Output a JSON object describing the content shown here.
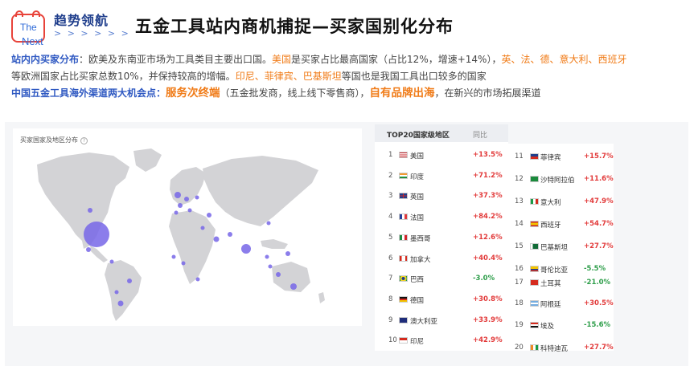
{
  "header": {
    "logo_the": "The",
    "logo_next": "Next",
    "brand_name": "趋势领航",
    "brand_chevrons": "> > > > > >",
    "title": "五金工具站内商机捕捉—买家国别化分布"
  },
  "line1": {
    "label": "站内内买家分布",
    "p1": "：欧美及东南亚市场为工具类目主要出口国。",
    "hl1": "美国",
    "p2": "是买家占比最高国家（占比12%，增速+14%），",
    "hl2": "英、法、德、意大利、西班牙"
  },
  "line2": {
    "p1": "等欧洲国家占比买家总数10%，并保持较高的增幅。",
    "hl1": "印尼、菲律宾、巴基斯坦",
    "p2": "等国也是我国工具出口较多的国家"
  },
  "line3": {
    "label": "中国五金工具海外渠道两大机会点：",
    "hl1": "服务次终端",
    "p1": "（五金批发商，线上线下零售商），",
    "hl2": "自有品牌出海",
    "p2": "，在新兴的市场拓展渠道"
  },
  "map": {
    "title": "买家国家及地区分布",
    "help_icon_text": "?",
    "colors": {
      "land": "#d3d3d6",
      "bubble": "#7766e8"
    }
  },
  "table": {
    "col_country": "TOP20国家级地区",
    "col_change": "同比",
    "colors": {
      "positive": "#e23a3a",
      "negative": "#2e9e4a"
    },
    "rows_left": [
      {
        "rank": "1",
        "flag": "us-flag",
        "name": "美国",
        "change": "+13.5%",
        "dir": "pos"
      },
      {
        "rank": "2",
        "flag": "in-flag",
        "name": "印度",
        "change": "+71.2%",
        "dir": "pos"
      },
      {
        "rank": "3",
        "flag": "gb-flag",
        "name": "英国",
        "change": "+37.3%",
        "dir": "pos"
      },
      {
        "rank": "4",
        "flag": "fr-flag",
        "name": "法国",
        "change": "+84.2%",
        "dir": "pos"
      },
      {
        "rank": "5",
        "flag": "mx-flag",
        "name": "墨西哥",
        "change": "+12.6%",
        "dir": "pos"
      },
      {
        "rank": "6",
        "flag": "ca-flag",
        "name": "加拿大",
        "change": "+40.4%",
        "dir": "pos"
      },
      {
        "rank": "7",
        "flag": "br-flag",
        "name": "巴西",
        "change": "-3.0%",
        "dir": "neg"
      },
      {
        "rank": "8",
        "flag": "de-flag",
        "name": "德国",
        "change": "+30.8%",
        "dir": "pos"
      },
      {
        "rank": "9",
        "flag": "au-flag",
        "name": "澳大利亚",
        "change": "+33.9%",
        "dir": "pos"
      },
      {
        "rank": "10",
        "flag": "id-flag",
        "name": "印尼",
        "change": "+42.9%",
        "dir": "pos"
      }
    ],
    "rows_right": [
      {
        "rank": "11",
        "flag": "ph-flag",
        "name": "菲律宾",
        "change": "+15.7%",
        "dir": "pos"
      },
      {
        "rank": "12",
        "flag": "sa-flag",
        "name": "沙特阿拉伯",
        "change": "+11.6%",
        "dir": "pos"
      },
      {
        "rank": "13",
        "flag": "it-flag",
        "name": "意大利",
        "change": "+47.9%",
        "dir": "pos"
      },
      {
        "rank": "14",
        "flag": "es-flag",
        "name": "西班牙",
        "change": "+54.7%",
        "dir": "pos"
      },
      {
        "rank": "15",
        "flag": "pk-flag",
        "name": "巴基斯坦",
        "change": "+27.7%",
        "dir": "pos"
      },
      {
        "rank": "16",
        "flag": "co-flag",
        "name": "哥伦比亚",
        "change": "-5.5%",
        "dir": "neg"
      },
      {
        "rank": "17",
        "flag": "tr-flag",
        "name": "土耳其",
        "change": "-21.0%",
        "dir": "neg"
      },
      {
        "rank": "18",
        "flag": "ar-flag",
        "name": "阿根廷",
        "change": "+30.5%",
        "dir": "pos"
      },
      {
        "rank": "19",
        "flag": "eg-flag",
        "name": "埃及",
        "change": "-15.6%",
        "dir": "neg"
      },
      {
        "rank": "20",
        "flag": "ci-flag",
        "name": "科特迪瓦",
        "change": "+27.7%",
        "dir": "pos"
      }
    ]
  }
}
